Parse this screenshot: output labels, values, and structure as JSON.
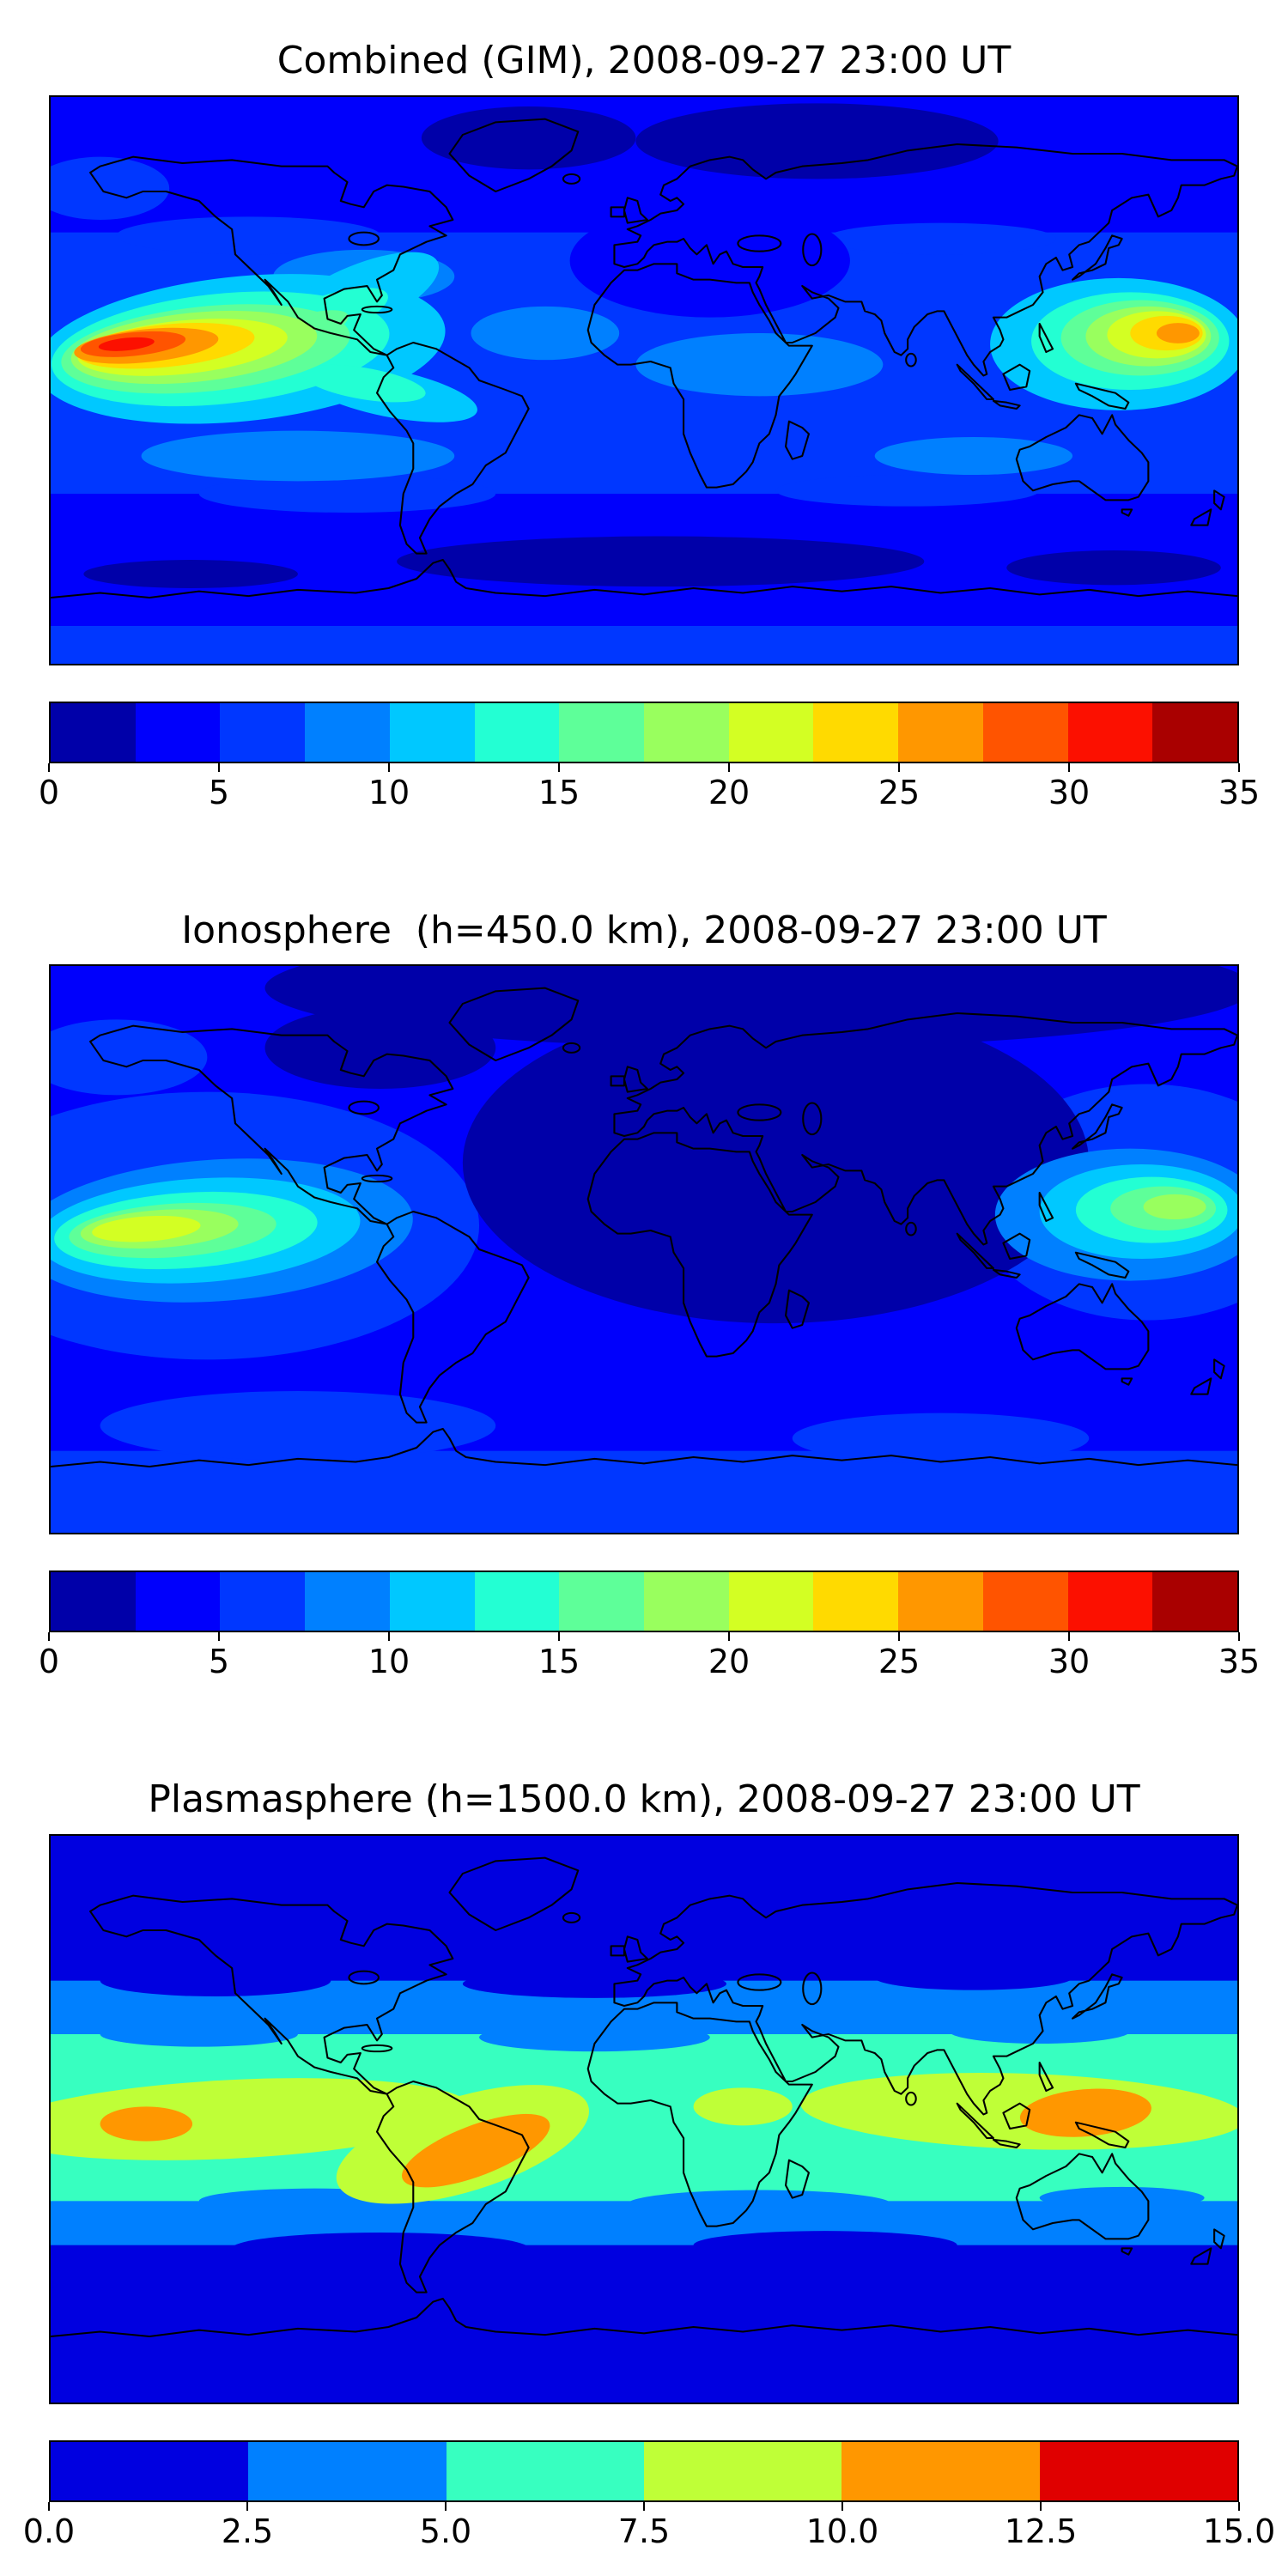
{
  "figure": {
    "background": "#ffffff",
    "description": "Three stacked global filled-contour TEC maps with jet colorbars"
  },
  "panels": [
    {
      "id": "combined",
      "title": "Combined (GIM), 2008-09-27 23:00 UT",
      "colorbar": {
        "ticks": [
          "0",
          "5",
          "10",
          "15",
          "20",
          "25",
          "30",
          "35"
        ],
        "colors": [
          "#0000A9",
          "#0000FC",
          "#0037FF",
          "#0080FF",
          "#00C8FF",
          "#23FFD3",
          "#5EFF99",
          "#99FF5E",
          "#D3FF23",
          "#FFDA00",
          "#FF9700",
          "#FF5400",
          "#FC1000",
          "#A90000"
        ]
      }
    },
    {
      "id": "ionosphere",
      "title": "Ionosphere  (h=450.0 km), 2008-09-27 23:00 UT",
      "colorbar": {
        "ticks": [
          "0",
          "5",
          "10",
          "15",
          "20",
          "25",
          "30",
          "35"
        ],
        "colors": [
          "#0000A9",
          "#0000FC",
          "#0037FF",
          "#0080FF",
          "#00C8FF",
          "#23FFD3",
          "#5EFF99",
          "#99FF5E",
          "#D3FF23",
          "#FFDA00",
          "#FF9700",
          "#FF5400",
          "#FC1000",
          "#A90000"
        ]
      }
    },
    {
      "id": "plasmasphere",
      "title": "Plasmasphere (h=1500.0 km), 2008-09-27 23:00 UT",
      "colorbar": {
        "ticks": [
          "0.0",
          "2.5",
          "5.0",
          "7.5",
          "10.0",
          "12.5",
          "15.0"
        ],
        "colors": [
          "#0000E0",
          "#0080FF",
          "#37FFC0",
          "#BFFF37",
          "#FF9700",
          "#E00000"
        ]
      }
    }
  ],
  "chart_data": [
    {
      "type": "heatmap",
      "subtype": "filled-contour world map with coastlines",
      "title": "Combined (GIM), 2008-09-27 23:00 UT",
      "x_range_lon_deg": [
        -180,
        180
      ],
      "y_range_lat_deg": [
        -90,
        90
      ],
      "colormap": "jet",
      "levels": 14,
      "value_range": [
        0,
        35
      ],
      "colorbar_ticks": [
        0,
        5,
        10,
        15,
        20,
        25,
        30,
        35
      ],
      "features": [
        {
          "name": "equatorial eastern-Pacific maximum",
          "lon": -135,
          "lat": 8,
          "peak_value": 33
        },
        {
          "name": "west-Pacific secondary maximum near Philippines/Japan",
          "lon": 145,
          "lat": 15,
          "peak_value": 28
        },
        {
          "name": "equatorial cyan/green band around both maxima",
          "value_range": [
            10,
            17.5
          ]
        },
        {
          "name": "northern high-latitude band",
          "value_range": [
            2.5,
            5
          ]
        },
        {
          "name": "southern mid/high-latitude minimum (lat -45 to -65)",
          "value_range": [
            0,
            2.5
          ]
        },
        {
          "name": "ocean background mid-latitudes",
          "value_range": [
            5,
            10
          ]
        }
      ]
    },
    {
      "type": "heatmap",
      "subtype": "filled-contour world map with coastlines",
      "title": "Ionosphere  (h=450.0 km), 2008-09-27 23:00 UT",
      "x_range_lon_deg": [
        -180,
        180
      ],
      "y_range_lat_deg": [
        -90,
        90
      ],
      "colormap": "jet",
      "levels": 14,
      "value_range": [
        0,
        35
      ],
      "colorbar_ticks": [
        0,
        5,
        10,
        15,
        20,
        25,
        30,
        35
      ],
      "features": [
        {
          "name": "equatorial eastern-Pacific maximum (yellow-green core)",
          "lon": -140,
          "lat": 4,
          "peak_value": 22
        },
        {
          "name": "west-Pacific secondary maximum",
          "lon": 142,
          "lat": 8,
          "peak_value": 19
        },
        {
          "name": "broad nightside minimum over Africa/Europe/Asia",
          "value_range": [
            0,
            2.5
          ]
        },
        {
          "name": "ocean background",
          "value_range": [
            2.5,
            7.5
          ]
        }
      ]
    },
    {
      "type": "heatmap",
      "subtype": "filled-contour world map with coastlines",
      "title": "Plasmasphere (h=1500.0 km), 2008-09-27 23:00 UT",
      "x_range_lon_deg": [
        -180,
        180
      ],
      "y_range_lat_deg": [
        -90,
        90
      ],
      "colormap": "jet",
      "levels": 6,
      "value_range": [
        0,
        15
      ],
      "colorbar_ticks": [
        0.0,
        2.5,
        5.0,
        7.5,
        10.0,
        12.5,
        15.0
      ],
      "features": [
        {
          "name": "broad equatorial aquamarine band (lat -25 to +28)",
          "value_range": [
            5,
            7.5
          ]
        },
        {
          "name": "yellow-green core band along equator",
          "value_range": [
            7.5,
            10
          ]
        },
        {
          "name": "orange maximum over South America",
          "lon": -62,
          "lat": -10,
          "peak_value": 11
        },
        {
          "name": "orange maximum central Pacific (left edge)",
          "lon": -151,
          "lat": 0,
          "peak_value": 11
        },
        {
          "name": "orange maximum over Southeast Asia",
          "lon": 134,
          "lat": 2,
          "peak_value": 11
        },
        {
          "name": "light-blue transition band",
          "value_range": [
            2.5,
            5
          ]
        },
        {
          "name": "high-latitude background",
          "value_range": [
            0,
            2.5
          ]
        }
      ]
    }
  ]
}
